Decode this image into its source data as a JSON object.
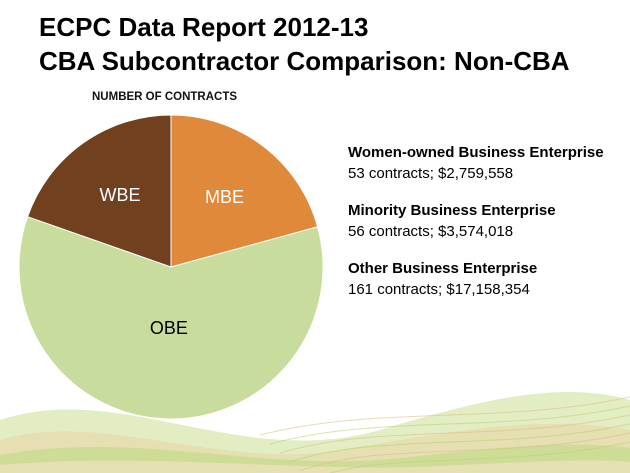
{
  "slide": {
    "title_line1": "ECPC Data Report 2012-13",
    "title_line2": "CBA Subcontractor Comparison: Non-CBA"
  },
  "chart_data": {
    "type": "pie",
    "title": "NUMBER OF CONTRACTS",
    "categories": [
      "MBE",
      "OBE",
      "WBE"
    ],
    "values": [
      56,
      161,
      53
    ],
    "colors": [
      "#e0893b",
      "#c7dc9d",
      "#71401f"
    ],
    "label_colors": [
      "#ffffff",
      "#000000",
      "#ffffff"
    ]
  },
  "legend": {
    "items": [
      {
        "name": "Women-owned Business Enterprise",
        "detail": "53 contracts; $2,759,558"
      },
      {
        "name": "Minority Business Enterprise",
        "detail": "56 contracts; $3,574,018"
      },
      {
        "name": "Other Business Enterprise",
        "detail": "161 contracts; $17,158,354"
      }
    ]
  },
  "decoration": {
    "wave_colors": [
      "#d7e6a9",
      "#e8d3a3",
      "#c5dc8a",
      "#efe2bd"
    ]
  }
}
